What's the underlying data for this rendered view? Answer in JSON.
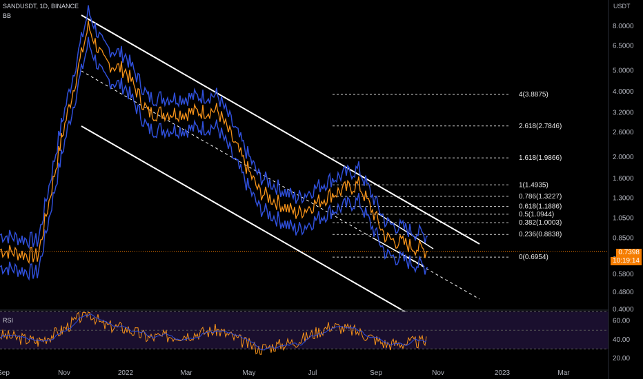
{
  "header": {
    "symbol_line": "SANDUSDT, 1D, BINANCE",
    "indicator": "BB"
  },
  "colors": {
    "background": "#000000",
    "price": "#f7931a",
    "bands": "#2f4fd9",
    "channel": "#ffffff",
    "rsi_line": "#f7931a",
    "rsi_ma": "#2f4fd9",
    "rsi_bg": "#1a0f2e",
    "current_price_badge": "#f57c00"
  },
  "price_axis": {
    "unit_label": "USDT",
    "scale": "log",
    "ticks": [
      "8.0000",
      "6.5000",
      "5.0000",
      "4.0000",
      "3.2000",
      "2.6000",
      "2.0000",
      "1.6000",
      "1.3000",
      "1.0500",
      "0.8500",
      "0.6800",
      "0.5800",
      "0.4800",
      "0.4000"
    ],
    "current_price": "0.7398",
    "countdown": "10:19:14"
  },
  "time_axis": {
    "ticks": [
      "Sep",
      "Nov",
      "2022",
      "Mar",
      "May",
      "Jul",
      "Sep",
      "Nov",
      "2023",
      "Mar"
    ]
  },
  "fib_levels": [
    "4(3.8875)",
    "2.618(2.7846)",
    "1.618(1.9866)",
    "1(1.4935)",
    "0.786(1.3227)",
    "0.618(1.1886)",
    "0.5(1.0944)",
    "0.382(1.0003)",
    "0.236(0.8838)",
    "0(0.6954)"
  ],
  "rsi": {
    "label": "RSI",
    "ticks": [
      "60.00",
      "40.00",
      "20.00"
    ]
  },
  "chart_data": {
    "type": "line",
    "title": "SANDUSDT, 1D, BINANCE",
    "scale": "log",
    "ylim": [
      0.4,
      9
    ],
    "x": [
      "2021-09",
      "2021-10",
      "2021-11",
      "2021-11-25",
      "2021-12",
      "2022-01",
      "2022-02",
      "2022-03",
      "2022-04",
      "2022-05",
      "2022-06",
      "2022-07",
      "2022-08",
      "2022-09",
      "2022-10"
    ],
    "series": [
      {
        "name": "SANDUSDT",
        "values": [
          0.75,
          0.7,
          2.5,
          8.0,
          5.5,
          5.0,
          3.2,
          3.2,
          3.3,
          1.4,
          1.1,
          1.35,
          1.5,
          0.85,
          0.7398
        ]
      }
    ],
    "fib_retracement": [
      {
        "level": "4",
        "price": 3.8875
      },
      {
        "level": "2.618",
        "price": 2.7846
      },
      {
        "level": "1.618",
        "price": 1.9866
      },
      {
        "level": "1",
        "price": 1.4935
      },
      {
        "level": "0.786",
        "price": 1.3227
      },
      {
        "level": "0.618",
        "price": 1.1886
      },
      {
        "level": "0.5",
        "price": 1.0944
      },
      {
        "level": "0.382",
        "price": 1.0003
      },
      {
        "level": "0.236",
        "price": 0.8838
      },
      {
        "level": "0",
        "price": 0.6954
      }
    ],
    "rsi": {
      "ylim": [
        20,
        70
      ],
      "values": [
        45,
        38,
        50,
        70,
        55,
        52,
        42,
        45,
        50,
        30,
        38,
        55,
        48,
        35,
        38
      ]
    }
  }
}
